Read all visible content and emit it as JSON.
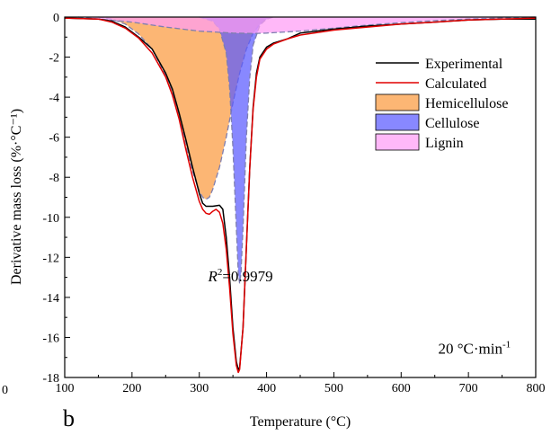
{
  "chart_data": {
    "type": "line",
    "xlabel": "Temperature (°C)",
    "ylabel": "Derivative mass loss (%·°C⁻¹)",
    "xlim": [
      100,
      800
    ],
    "ylim": [
      -18,
      0
    ],
    "x_ticks": [
      "100",
      "200",
      "300",
      "400",
      "500",
      "600",
      "700",
      "800"
    ],
    "y_ticks": [
      "0",
      "-2",
      "-4",
      "-6",
      "-8",
      "-10",
      "-12",
      "-14",
      "-16",
      "-18"
    ],
    "grid": false,
    "legend_position": "top-right",
    "series": [
      {
        "name": "Experimental",
        "kind": "line",
        "color": "#000000",
        "points": [
          [
            100,
            -0.05
          ],
          [
            150,
            -0.1
          ],
          [
            170,
            -0.2
          ],
          [
            190,
            -0.5
          ],
          [
            210,
            -1.0
          ],
          [
            230,
            -1.6
          ],
          [
            250,
            -2.8
          ],
          [
            260,
            -3.6
          ],
          [
            270,
            -4.8
          ],
          [
            280,
            -6.1
          ],
          [
            290,
            -7.5
          ],
          [
            300,
            -8.8
          ],
          [
            305,
            -9.3
          ],
          [
            310,
            -9.45
          ],
          [
            320,
            -9.45
          ],
          [
            330,
            -9.4
          ],
          [
            335,
            -9.6
          ],
          [
            340,
            -11.0
          ],
          [
            345,
            -13.0
          ],
          [
            350,
            -15.5
          ],
          [
            355,
            -17.2
          ],
          [
            358,
            -17.6
          ],
          [
            360,
            -17.5
          ],
          [
            365,
            -15.5
          ],
          [
            370,
            -11.5
          ],
          [
            375,
            -7.5
          ],
          [
            380,
            -4.5
          ],
          [
            385,
            -2.8
          ],
          [
            390,
            -2.0
          ],
          [
            400,
            -1.5
          ],
          [
            410,
            -1.3
          ],
          [
            430,
            -1.1
          ],
          [
            450,
            -0.8
          ],
          [
            500,
            -0.6
          ],
          [
            550,
            -0.45
          ],
          [
            600,
            -0.35
          ],
          [
            650,
            -0.25
          ],
          [
            700,
            -0.15
          ],
          [
            750,
            -0.1
          ],
          [
            800,
            -0.1
          ]
        ]
      },
      {
        "name": "Calculated",
        "kind": "line",
        "color": "#e00000",
        "points": [
          [
            100,
            -0.05
          ],
          [
            150,
            -0.1
          ],
          [
            170,
            -0.25
          ],
          [
            190,
            -0.55
          ],
          [
            210,
            -1.05
          ],
          [
            230,
            -1.8
          ],
          [
            250,
            -3.0
          ],
          [
            260,
            -3.9
          ],
          [
            270,
            -5.1
          ],
          [
            280,
            -6.6
          ],
          [
            290,
            -8.0
          ],
          [
            300,
            -9.2
          ],
          [
            305,
            -9.6
          ],
          [
            310,
            -9.8
          ],
          [
            315,
            -9.85
          ],
          [
            320,
            -9.7
          ],
          [
            325,
            -9.6
          ],
          [
            330,
            -9.75
          ],
          [
            335,
            -10.3
          ],
          [
            340,
            -11.6
          ],
          [
            345,
            -13.5
          ],
          [
            350,
            -15.8
          ],
          [
            355,
            -17.4
          ],
          [
            358,
            -17.75
          ],
          [
            360,
            -17.6
          ],
          [
            365,
            -15.5
          ],
          [
            370,
            -11.5
          ],
          [
            375,
            -7.5
          ],
          [
            380,
            -4.6
          ],
          [
            385,
            -3.0
          ],
          [
            390,
            -2.1
          ],
          [
            400,
            -1.6
          ],
          [
            410,
            -1.35
          ],
          [
            430,
            -1.1
          ],
          [
            450,
            -0.9
          ],
          [
            500,
            -0.65
          ],
          [
            550,
            -0.5
          ],
          [
            600,
            -0.35
          ],
          [
            650,
            -0.25
          ],
          [
            700,
            -0.15
          ],
          [
            750,
            -0.1
          ],
          [
            800,
            -0.05
          ]
        ]
      },
      {
        "name": "Hemicellulose",
        "kind": "area",
        "color": "#fb9a3e",
        "points": [
          [
            150,
            0
          ],
          [
            170,
            -0.1
          ],
          [
            190,
            -0.35
          ],
          [
            210,
            -0.85
          ],
          [
            230,
            -1.6
          ],
          [
            250,
            -2.9
          ],
          [
            260,
            -3.8
          ],
          [
            270,
            -5.0
          ],
          [
            280,
            -6.4
          ],
          [
            290,
            -7.7
          ],
          [
            300,
            -8.7
          ],
          [
            305,
            -9.0
          ],
          [
            310,
            -9.1
          ],
          [
            315,
            -9.0
          ],
          [
            320,
            -8.6
          ],
          [
            330,
            -7.5
          ],
          [
            340,
            -6.0
          ],
          [
            350,
            -4.3
          ],
          [
            360,
            -2.8
          ],
          [
            370,
            -1.6
          ],
          [
            380,
            -0.8
          ],
          [
            390,
            -0.35
          ],
          [
            400,
            -0.1
          ],
          [
            410,
            0
          ]
        ]
      },
      {
        "name": "Cellulose",
        "kind": "area",
        "color": "#5a5aff",
        "points": [
          [
            300,
            0
          ],
          [
            320,
            -0.2
          ],
          [
            330,
            -0.6
          ],
          [
            340,
            -1.8
          ],
          [
            345,
            -3.5
          ],
          [
            350,
            -6.5
          ],
          [
            355,
            -10.5
          ],
          [
            358,
            -12.8
          ],
          [
            360,
            -13.3
          ],
          [
            362,
            -12.8
          ],
          [
            365,
            -10.5
          ],
          [
            370,
            -6.0
          ],
          [
            375,
            -3.0
          ],
          [
            380,
            -1.4
          ],
          [
            390,
            -0.4
          ],
          [
            400,
            -0.1
          ],
          [
            410,
            0
          ]
        ]
      },
      {
        "name": "Lignin",
        "kind": "area",
        "color": "#ff9cf5",
        "points": [
          [
            120,
            0
          ],
          [
            150,
            -0.1
          ],
          [
            200,
            -0.25
          ],
          [
            250,
            -0.5
          ],
          [
            300,
            -0.7
          ],
          [
            350,
            -0.8
          ],
          [
            380,
            -0.82
          ],
          [
            400,
            -0.8
          ],
          [
            450,
            -0.7
          ],
          [
            500,
            -0.55
          ],
          [
            550,
            -0.4
          ],
          [
            600,
            -0.28
          ],
          [
            650,
            -0.18
          ],
          [
            700,
            -0.1
          ],
          [
            750,
            -0.05
          ],
          [
            800,
            0
          ]
        ]
      }
    ],
    "annotations": [
      {
        "text_italic": "R",
        "superscript": "2",
        "text": "=0.9979",
        "x": 313,
        "y": -13.2
      },
      {
        "text": "20 °C·min",
        "superscript": "-1",
        "x": 655,
        "y": -16.8
      }
    ]
  },
  "panel_label": "b",
  "corner_fragment": "0"
}
